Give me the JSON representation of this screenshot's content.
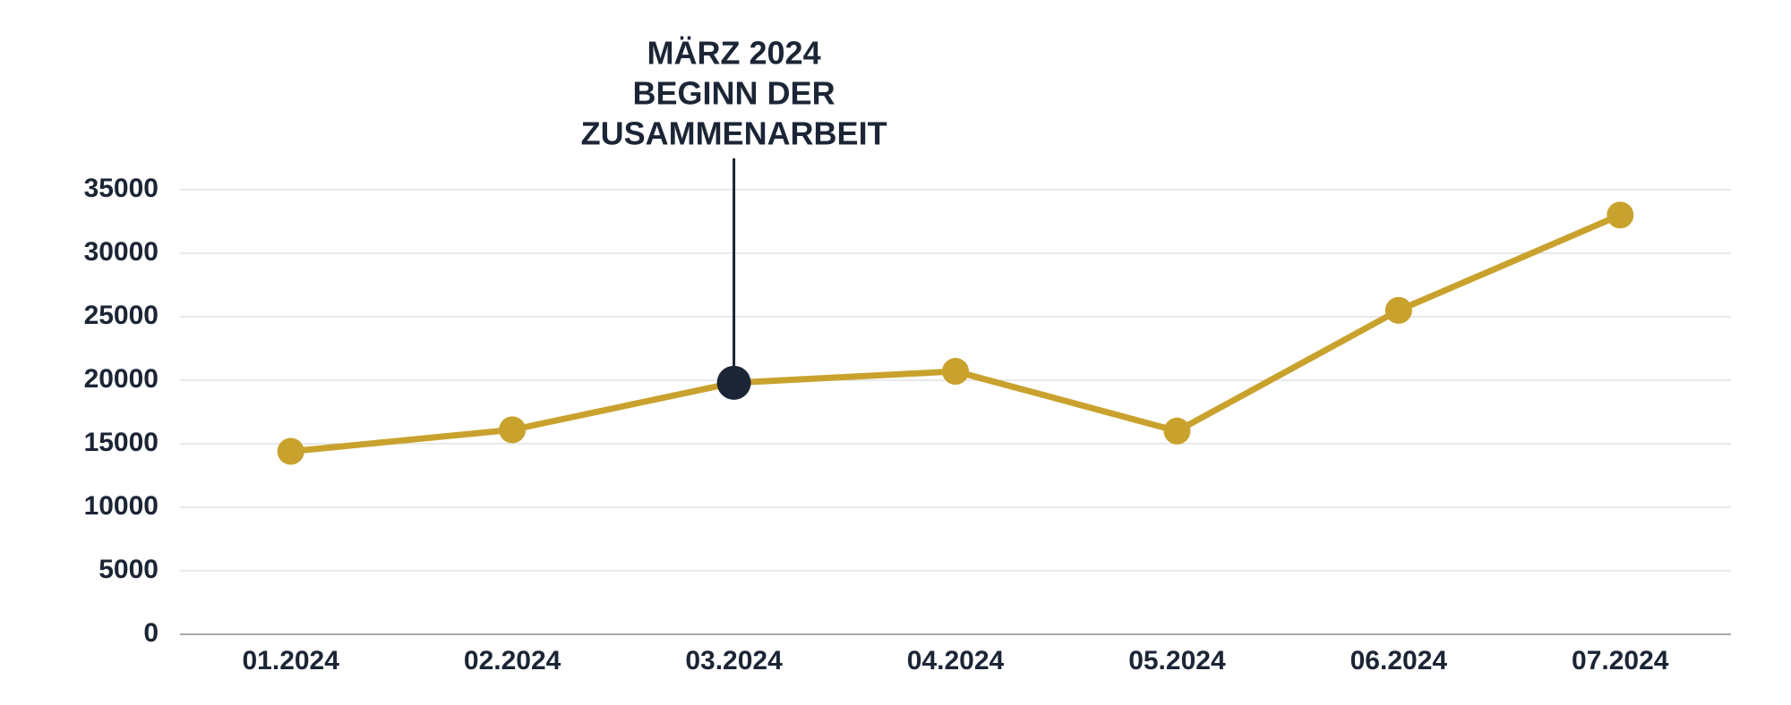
{
  "chart_data": {
    "type": "line",
    "categories": [
      "01.2024",
      "02.2024",
      "03.2024",
      "04.2024",
      "05.2024",
      "06.2024",
      "07.2024"
    ],
    "series": [
      {
        "color": "#c9a22e",
        "values": [
          14400,
          16100,
          19800,
          20700,
          16000,
          25500,
          33000
        ]
      }
    ],
    "ylim": [
      0,
      35000
    ],
    "yticks": [
      0,
      5000,
      10000,
      15000,
      20000,
      25000,
      30000,
      35000
    ],
    "grid": true,
    "annotation": {
      "category": "03.2024",
      "lines": [
        "MÄRZ 2024",
        "BEGINN DER",
        "ZUSAMMENARBEIT"
      ],
      "color": "#1b2535"
    }
  }
}
